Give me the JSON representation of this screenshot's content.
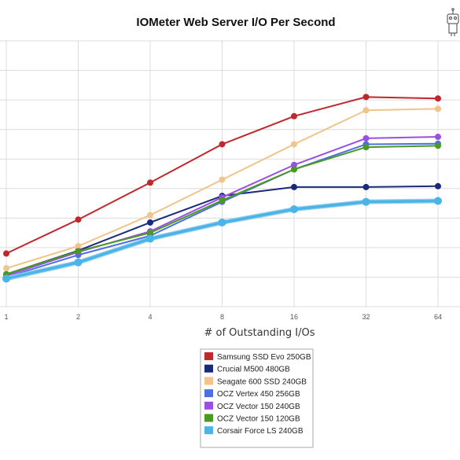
{
  "chart_data": {
    "type": "line",
    "title": "IOMeter Web Server I/O Per Second",
    "xlabel": "# of Outstanding I/Os",
    "ylabel": "",
    "x": [
      1,
      2,
      4,
      8,
      16,
      32,
      64
    ],
    "x_tick_labels": [
      "1",
      "2",
      "4",
      "8",
      "16",
      "32",
      "64"
    ],
    "ylim": [
      0,
      9
    ],
    "grid": true,
    "legend_position": "bottom-center",
    "series": [
      {
        "name": "Samsung SSD Evo 250GB",
        "color": "#c0282d",
        "values": [
          1.8,
          2.95,
          4.2,
          5.5,
          6.45,
          7.1,
          7.05
        ]
      },
      {
        "name": "Crucial M500 480GB",
        "color": "#1a2a7a",
        "values": [
          1.1,
          1.9,
          2.85,
          3.75,
          4.05,
          4.05,
          4.08
        ]
      },
      {
        "name": "Seagate 600 SSD 240GB",
        "color": "#f0c48a",
        "values": [
          1.3,
          2.05,
          3.1,
          4.3,
          5.5,
          6.65,
          6.7
        ]
      },
      {
        "name": "OCZ Vertex 450 256GB",
        "color": "#4f6fe0",
        "values": [
          1.0,
          1.75,
          2.4,
          3.55,
          4.65,
          5.5,
          5.52
        ]
      },
      {
        "name": "OCZ Vector 150 240GB",
        "color": "#9b4fe0",
        "values": [
          1.05,
          1.85,
          2.55,
          3.7,
          4.8,
          5.7,
          5.75
        ]
      },
      {
        "name": "OCZ Vector 150 120GB",
        "color": "#4a9a22",
        "values": [
          1.1,
          1.88,
          2.5,
          3.6,
          4.65,
          5.4,
          5.45
        ]
      },
      {
        "name": "Corsair Force LS 240GB",
        "color": "#4ab4ea",
        "values": [
          0.95,
          1.5,
          2.3,
          2.85,
          3.3,
          3.55,
          3.58
        ]
      }
    ]
  },
  "corner_icon": "robot-icon"
}
